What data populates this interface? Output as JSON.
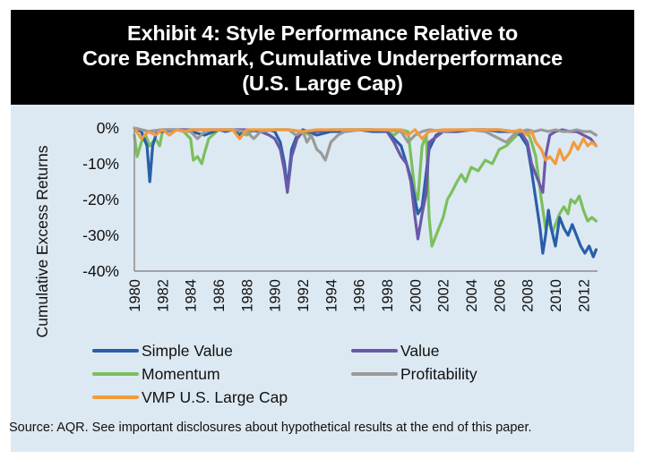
{
  "header": {
    "title_lines": [
      "Exhibit 4: Style Performance Relative to",
      "Core Benchmark, Cumulative Underperformance",
      "(U.S. Large Cap)"
    ]
  },
  "source_note": "Source: AQR. See important disclosures about hypothetical results at the end of this paper.",
  "colors": {
    "panel_bg": "#dde9f2",
    "header_bg": "#000000",
    "axis": "#8c8c8c"
  },
  "chart_data": {
    "type": "line",
    "title": "Exhibit 4: Style Performance Relative to Core Benchmark, Cumulative Underperformance (U.S. Large Cap)",
    "xlabel": "",
    "ylabel": "Cumulative Excess Returns",
    "xlim": [
      1980,
      2013
    ],
    "ylim": [
      -40,
      0
    ],
    "y_ticks": [
      0,
      -10,
      -20,
      -30,
      -40
    ],
    "y_tick_labels": [
      "0%",
      "-10%",
      "-20%",
      "-30%",
      "-40%"
    ],
    "x_ticks": [
      1980,
      1982,
      1984,
      1986,
      1988,
      1990,
      1992,
      1994,
      1996,
      1998,
      2000,
      2002,
      2004,
      2006,
      2008,
      2010,
      2012
    ],
    "x_tick_labels": [
      "1980",
      "1982",
      "1984",
      "1986",
      "1988",
      "1990",
      "1992",
      "1994",
      "1996",
      "1998",
      "2000",
      "2002",
      "2004",
      "2006",
      "2008",
      "2010",
      "2012"
    ],
    "grid": false,
    "legend_position": "bottom",
    "series": [
      {
        "name": "Simple Value",
        "color": "#2a5ea8",
        "x": [
          1980,
          1980.5,
          1980.9,
          1981.1,
          1981.3,
          1981.6,
          1982,
          1983,
          1984,
          1985,
          1986,
          1986.5,
          1987,
          1987.5,
          1988,
          1989,
          1989.5,
          1990,
          1990.4,
          1990.7,
          1990.9,
          1991.2,
          1991.6,
          1992,
          1993,
          1994,
          1995,
          1996,
          1997,
          1998,
          1998.5,
          1999,
          1999.4,
          1999.7,
          2000,
          2000.2,
          2000.5,
          2001,
          2001.5,
          2002,
          2003,
          2004,
          2005,
          2006,
          2007,
          2007.5,
          2008,
          2008.3,
          2008.6,
          2008.9,
          2009.1,
          2009.3,
          2009.5,
          2009.7,
          2010,
          2010.3,
          2010.6,
          2010.9,
          2011.2,
          2011.5,
          2011.8,
          2012.1,
          2012.4,
          2012.7,
          2012.9
        ],
        "values": [
          0,
          -1,
          -5,
          -15,
          -5,
          -1,
          -1,
          -0.5,
          -1,
          -2,
          -0.5,
          -1,
          -0.5,
          -2,
          -0.5,
          -1,
          -0.5,
          -1,
          -4,
          -10,
          -17,
          -6,
          -2,
          -0.5,
          -2,
          -1,
          -1,
          -0.5,
          -1,
          -1,
          -3,
          -5,
          -10,
          -14,
          -20,
          -24,
          -22,
          -6,
          -2,
          -1,
          -1,
          -0.5,
          -0.5,
          -1,
          -1,
          -2,
          -5,
          -12,
          -20,
          -28,
          -35,
          -30,
          -23,
          -28,
          -33,
          -25,
          -28,
          -30,
          -27,
          -30,
          -33,
          -35,
          -33,
          -36,
          -34
        ]
      },
      {
        "name": "Value",
        "color": "#6a59a8",
        "x": [
          1980,
          1981,
          1982,
          1983,
          1984,
          1985,
          1986,
          1987,
          1988,
          1989,
          1989.6,
          1990,
          1990.4,
          1990.7,
          1990.9,
          1991.2,
          1991.6,
          1992,
          1993,
          1994,
          1995,
          1996,
          1997,
          1998,
          1998.5,
          1999,
          1999.4,
          1999.7,
          2000,
          2000.2,
          2000.5,
          2000.8,
          2001,
          2002,
          2003,
          2004,
          2005,
          2006,
          2007,
          2007.5,
          2008,
          2008.3,
          2008.6,
          2008.9,
          2009.1,
          2009.3,
          2009.6,
          2010,
          2010.5,
          2011,
          2011.5,
          2012,
          2012.5,
          2012.9
        ],
        "values": [
          0,
          -1,
          -0.5,
          -0.5,
          -0.5,
          -0.5,
          -0.5,
          -0.5,
          -0.5,
          -1,
          -2,
          -3,
          -6,
          -12,
          -18,
          -8,
          -3,
          -1,
          -1,
          -0.5,
          -0.5,
          -0.5,
          -0.5,
          -1,
          -4,
          -8,
          -10,
          -15,
          -25,
          -31,
          -24,
          -18,
          -4,
          -1,
          -1,
          -0.5,
          -0.5,
          -0.5,
          -1,
          -1,
          -4,
          -10,
          -13,
          -16,
          -18,
          -8,
          -2,
          -1,
          -0.5,
          -1,
          -1,
          -2,
          -3,
          -5
        ]
      },
      {
        "name": "Momentum",
        "color": "#7bbf5e",
        "x": [
          1980,
          1980.2,
          1980.5,
          1980.8,
          1981.1,
          1981.5,
          1981.8,
          1982,
          1982.5,
          1983,
          1983.5,
          1984,
          1984.2,
          1984.5,
          1984.8,
          1985,
          1985.3,
          1986,
          1987,
          1988,
          1988.5,
          1989,
          1990,
          1991,
          1992,
          1992.5,
          1993,
          1994,
          1995,
          1996,
          1997,
          1998,
          1998.5,
          1999,
          1999.5,
          2000,
          2000.2,
          2000.5,
          2000.8,
          2001,
          2001.2,
          2001.5,
          2001.8,
          2002,
          2002.3,
          2002.6,
          2003,
          2003.3,
          2003.6,
          2004,
          2004.5,
          2005,
          2005.5,
          2006,
          2006.5,
          2007,
          2007.5,
          2008,
          2008.3,
          2008.6,
          2009,
          2009.3,
          2009.5,
          2009.8,
          2010,
          2010.3,
          2010.6,
          2010.9,
          2011.1,
          2011.4,
          2011.7,
          2012,
          2012.3,
          2012.6,
          2012.9
        ],
        "values": [
          -2,
          -8,
          -4,
          -2,
          -5,
          -3,
          -5,
          -1,
          -0.5,
          -0.5,
          -1,
          -3,
          -9,
          -8,
          -10,
          -7,
          -3,
          -0.5,
          -0.5,
          -2,
          -0.5,
          -1,
          -0.5,
          -0.5,
          -1,
          -2,
          -1,
          -1,
          -0.5,
          -0.5,
          -0.5,
          -1,
          -2,
          -0.5,
          -1,
          -18,
          -20,
          -5,
          -2,
          -25,
          -33,
          -30,
          -27,
          -25,
          -20,
          -18,
          -15,
          -13,
          -15,
          -11,
          -12,
          -9,
          -10,
          -6,
          -5,
          -3,
          -1,
          -1,
          -4,
          -8,
          -20,
          -28,
          -26,
          -29,
          -27,
          -24,
          -22,
          -24,
          -20,
          -21,
          -19,
          -23,
          -26,
          -25,
          -26
        ]
      },
      {
        "name": "Profitability",
        "color": "#9a9a9a",
        "x": [
          1980,
          1981,
          1982,
          1983,
          1984,
          1984.5,
          1985,
          1985.5,
          1986,
          1987,
          1988,
          1988.5,
          1989,
          1990,
          1991,
          1991.5,
          1992,
          1992.3,
          1992.6,
          1993,
          1993.3,
          1993.6,
          1994,
          1994.5,
          1995,
          1996,
          1997,
          1998,
          1999,
          1999.5,
          2000,
          2000.5,
          2001,
          2002,
          2003,
          2004,
          2005,
          2006,
          2006.5,
          2007,
          2007.5,
          2008,
          2008.5,
          2009,
          2009.5,
          2010,
          2010.5,
          2011,
          2011.5,
          2012,
          2012.5,
          2012.9
        ],
        "values": [
          0,
          -1,
          -0.5,
          -0.5,
          -1,
          -3,
          -1,
          -0.5,
          -0.5,
          -0.5,
          -1,
          -3,
          -1,
          -0.5,
          -0.5,
          -2,
          -1,
          -4,
          -2,
          -6,
          -7,
          -9,
          -4,
          -2,
          -1,
          -0.5,
          -0.5,
          -0.5,
          -1,
          -4,
          -2,
          -1,
          -0.5,
          -1,
          -0.5,
          -0.5,
          -1,
          -3,
          -4,
          -2,
          -1,
          -0.5,
          -1,
          -0.5,
          -1,
          -0.5,
          -1,
          -1,
          -0.5,
          -1,
          -1,
          -2
        ]
      },
      {
        "name": "VMP U.S. Large Cap",
        "color": "#f29b3f",
        "x": [
          1980,
          1980.5,
          1981,
          1981.5,
          1982,
          1982.5,
          1983,
          1983.5,
          1984,
          1985,
          1986,
          1987,
          1987.5,
          1988,
          1989,
          1990,
          1991,
          1992,
          1993,
          1994,
          1995,
          1996,
          1997,
          1998,
          1999,
          1999.5,
          2000,
          2000.5,
          2001,
          2002,
          2003,
          2004,
          2005,
          2006,
          2007,
          2007.5,
          2008,
          2008.3,
          2008.6,
          2009,
          2009.3,
          2009.6,
          2010,
          2010.3,
          2010.6,
          2011,
          2011.3,
          2011.6,
          2012,
          2012.3,
          2012.6,
          2012.9
        ],
        "values": [
          0,
          -3,
          -1,
          -2,
          -0.5,
          -2,
          -0.5,
          -1,
          -0.5,
          -0.5,
          -0.5,
          -0.5,
          -3,
          -0.5,
          -0.5,
          -0.5,
          -0.5,
          -1,
          -0.5,
          -0.5,
          -0.5,
          -0.5,
          -0.5,
          -0.5,
          -0.5,
          -2,
          -0.5,
          -3,
          -1,
          -0.5,
          -0.5,
          -0.5,
          -0.5,
          -0.5,
          -1,
          -0.5,
          -2,
          -1,
          -4,
          -6,
          -9,
          -8,
          -10,
          -6,
          -9,
          -7,
          -4,
          -6,
          -3,
          -5,
          -4,
          -5
        ]
      }
    ]
  }
}
